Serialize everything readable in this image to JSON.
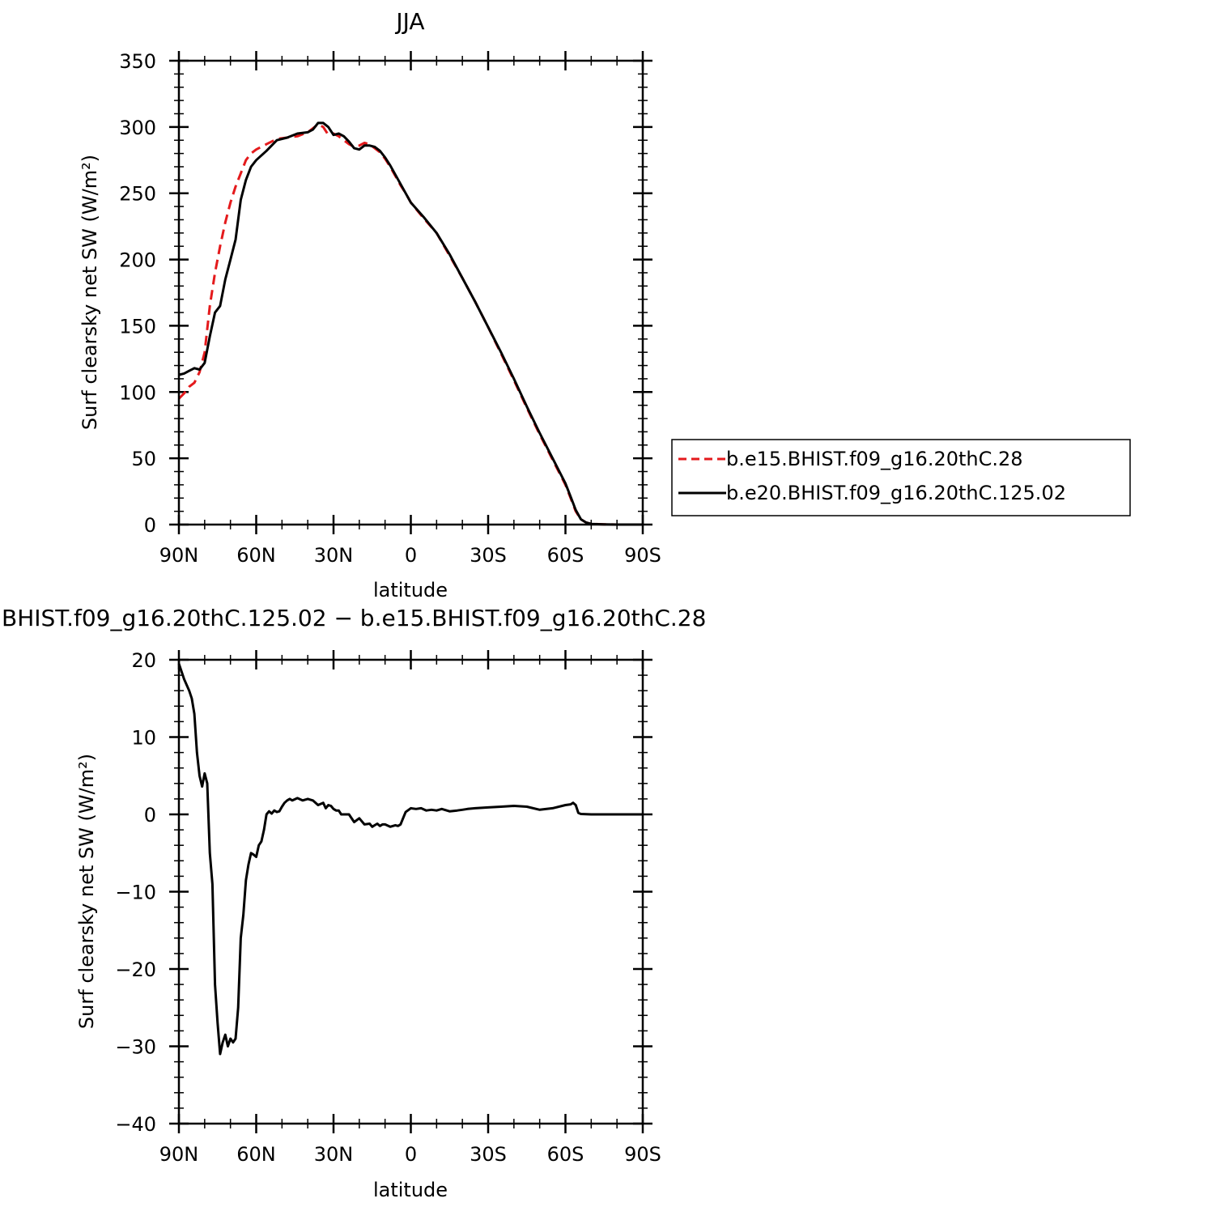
{
  "colors": {
    "series1": "#e41a1c",
    "series2": "#000000",
    "frame": "#000000",
    "background": "#ffffff"
  },
  "chart_data": [
    {
      "type": "line",
      "title": "JJA",
      "xlabel": "latitude",
      "ylabel": "Surf clearsky net SW (W/m²)",
      "xlim": [
        90,
        -90
      ],
      "ylim": [
        0,
        350
      ],
      "xticks": [
        90,
        60,
        30,
        0,
        -30,
        -60,
        -90
      ],
      "xticklabels": [
        "90N",
        "60N",
        "30N",
        "0",
        "30S",
        "60S",
        "90S"
      ],
      "yticks": [
        0,
        50,
        100,
        150,
        200,
        250,
        300,
        350
      ],
      "yticklabels": [
        "0",
        "50",
        "100",
        "150",
        "200",
        "250",
        "300",
        "350"
      ],
      "legend": "right-middle",
      "series": [
        {
          "name": "b.e15.BHIST.f09_g16.20thC.28",
          "style": "dashed",
          "x": [
            90,
            88,
            86,
            84,
            82,
            80,
            78,
            76,
            74,
            72,
            70,
            68,
            66,
            64,
            62,
            60,
            56,
            52,
            48,
            44,
            40,
            38,
            36,
            34,
            32,
            30,
            28,
            26,
            24,
            22,
            20,
            18,
            16,
            14,
            12,
            10,
            8,
            6,
            4,
            2,
            0,
            -5,
            -10,
            -15,
            -20,
            -25,
            -30,
            -35,
            -40,
            -45,
            -50,
            -55,
            -60,
            -62,
            -64,
            -66,
            -68,
            -70,
            -75,
            -80,
            -85,
            -90
          ],
          "y": [
            95,
            99,
            104,
            107,
            115,
            130,
            165,
            190,
            210,
            228,
            243,
            255,
            265,
            275,
            280,
            283,
            287,
            291,
            292,
            293,
            296,
            299,
            302,
            300,
            294,
            295,
            293,
            290,
            287,
            285,
            286,
            288,
            287,
            284,
            281,
            276,
            270,
            263,
            256,
            250,
            243,
            231,
            220,
            203,
            186,
            168,
            149,
            129,
            109,
            88,
            68,
            49,
            30,
            20,
            10,
            4,
            1.5,
            0.5,
            0.2,
            0,
            0,
            0
          ]
        },
        {
          "name": "b.e20.BHIST.f09_g16.20thC.125.02",
          "style": "solid",
          "x": [
            90,
            88,
            86,
            84,
            82,
            80,
            78,
            76,
            74,
            72,
            70,
            68,
            66,
            64,
            62,
            60,
            56,
            52,
            48,
            44,
            40,
            38,
            36,
            34,
            32,
            30,
            28,
            26,
            24,
            22,
            20,
            18,
            16,
            14,
            12,
            10,
            8,
            6,
            4,
            2,
            0,
            -5,
            -10,
            -15,
            -20,
            -25,
            -30,
            -35,
            -40,
            -45,
            -50,
            -55,
            -60,
            -62,
            -64,
            -66,
            -68,
            -70,
            -75,
            -80,
            -85,
            -90
          ],
          "y": [
            113,
            114,
            116,
            118,
            117,
            122,
            142,
            160,
            165,
            185,
            200,
            215,
            245,
            260,
            270,
            275,
            282,
            290,
            292,
            295,
            296,
            298,
            303,
            303,
            300,
            294,
            295,
            293,
            289,
            284,
            283,
            286,
            286,
            285,
            282,
            277,
            271,
            264,
            257,
            250,
            243,
            232,
            220,
            204,
            186,
            168,
            149,
            130,
            110,
            89,
            69,
            50,
            31,
            21,
            11,
            4,
            1.5,
            0.5,
            0.2,
            0,
            0,
            0
          ]
        }
      ]
    },
    {
      "type": "line",
      "title": "BHIST.f09_g16.20thC.125.02 − b.e15.BHIST.f09_g16.20thC.28",
      "xlabel": "latitude",
      "ylabel": "Surf clearsky net SW (W/m²)",
      "xlim": [
        90,
        -90
      ],
      "ylim": [
        -40,
        20
      ],
      "xticks": [
        90,
        60,
        30,
        0,
        -30,
        -60,
        -90
      ],
      "xticklabels": [
        "90N",
        "60N",
        "30N",
        "0",
        "30S",
        "60S",
        "90S"
      ],
      "yticks": [
        -40,
        -30,
        -20,
        -10,
        0,
        10,
        20
      ],
      "yticklabels": [
        "−40",
        "−30",
        "−20",
        "−10",
        "0",
        "10",
        "20"
      ],
      "series": [
        {
          "style": "solid",
          "x": [
            90,
            88,
            86,
            85,
            84,
            83,
            82,
            81,
            80,
            79,
            78,
            77,
            76,
            75,
            74,
            73,
            72,
            71,
            70,
            69,
            68,
            67,
            66,
            65,
            64,
            63,
            62,
            61,
            60,
            59,
            58,
            57,
            56,
            55,
            54,
            53,
            52,
            51,
            50,
            49,
            48,
            47,
            46,
            44,
            42,
            40,
            38,
            36,
            34,
            33,
            32,
            31,
            30,
            29,
            28,
            27,
            26,
            24,
            22,
            20,
            18,
            16,
            15,
            14,
            13,
            12,
            11,
            10,
            8,
            6,
            5,
            4,
            3,
            2,
            0,
            -2,
            -4,
            -6,
            -8,
            -10,
            -12,
            -15,
            -18,
            -20,
            -22,
            -25,
            -30,
            -35,
            -40,
            -45,
            -50,
            -55,
            -60,
            -62,
            -63,
            -64,
            -65,
            -66,
            -70,
            -75,
            -80,
            -85,
            -90
          ],
          "y": [
            19.5,
            17.5,
            16,
            15,
            13,
            8,
            5,
            3.6,
            5.3,
            4,
            -5,
            -9,
            -22,
            -27,
            -31,
            -29.5,
            -28.5,
            -30,
            -29,
            -29.5,
            -29,
            -25,
            -16,
            -13,
            -8.5,
            -6.5,
            -5,
            -5.2,
            -5.5,
            -4,
            -3.5,
            -2,
            0,
            0.4,
            0.1,
            0.5,
            0.3,
            0.4,
            1,
            1.5,
            1.8,
            2,
            1.8,
            2.1,
            1.8,
            2,
            1.8,
            1.2,
            1.5,
            0.8,
            1.2,
            1.1,
            0.7,
            0.5,
            0.5,
            0,
            0,
            0,
            -1,
            -0.5,
            -1.3,
            -1.2,
            -1.6,
            -1.4,
            -1.2,
            -1.5,
            -1.3,
            -1.3,
            -1.6,
            -1.4,
            -1.5,
            -1.3,
            -0.5,
            0.3,
            0.8,
            0.7,
            0.8,
            0.5,
            0.6,
            0.5,
            0.7,
            0.4,
            0.5,
            0.6,
            0.7,
            0.8,
            0.9,
            1,
            1.1,
            1,
            0.6,
            0.8,
            1.2,
            1.3,
            1.5,
            1.2,
            0.2,
            0.05,
            0,
            0,
            0,
            0,
            0
          ]
        }
      ]
    }
  ]
}
